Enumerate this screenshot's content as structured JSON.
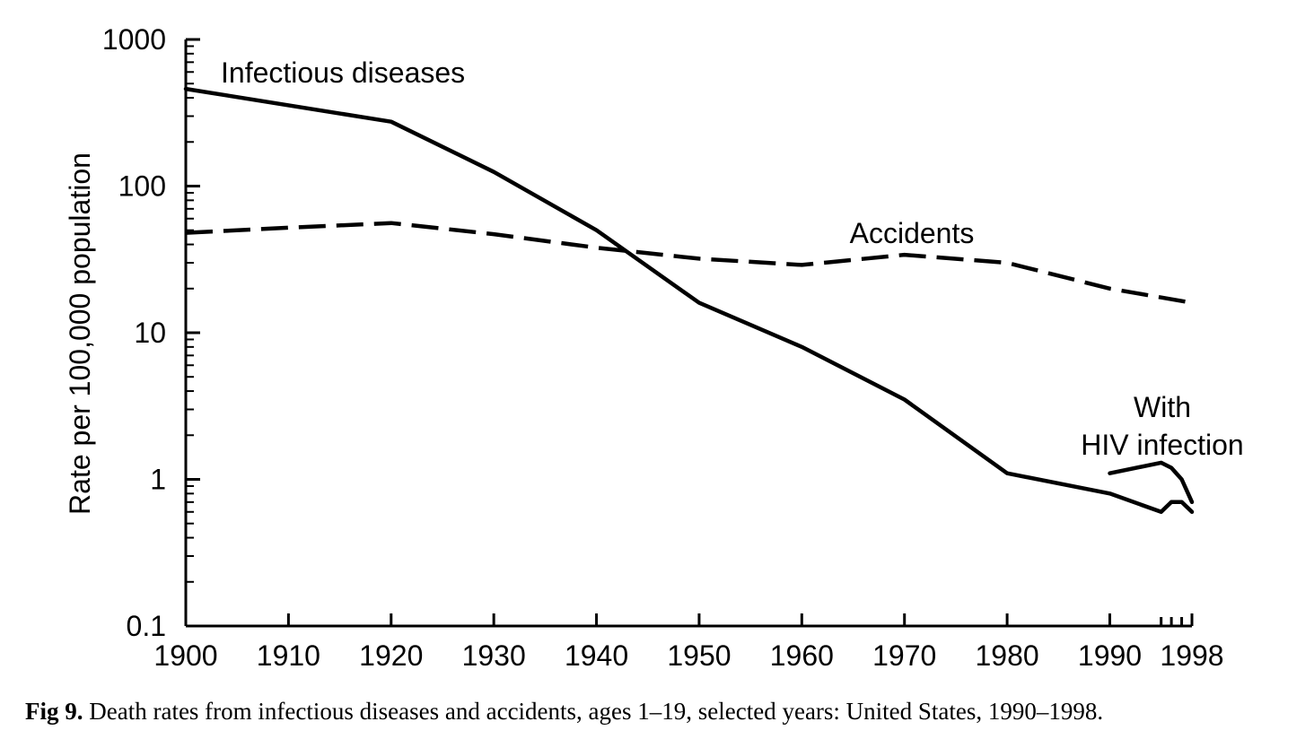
{
  "chart_data": {
    "type": "line",
    "title": "",
    "xlabel": "",
    "ylabel": "Rate per 100,000 population",
    "yscale": "log",
    "ylim": [
      0.1,
      1000
    ],
    "xlim": [
      1900,
      1998
    ],
    "y_ticks": [
      "1000",
      "100",
      "10",
      "1",
      "0.1"
    ],
    "x_ticks": [
      "1900",
      "1910",
      "1920",
      "1930",
      "1940",
      "1950",
      "1960",
      "1970",
      "1980",
      "1990",
      "1998"
    ],
    "series": [
      {
        "name": "Infectious diseases",
        "style": "solid",
        "x": [
          1900,
          1920,
          1930,
          1940,
          1950,
          1960,
          1970,
          1980,
          1990,
          1995,
          1996,
          1997,
          1998
        ],
        "y": [
          460,
          275,
          125,
          50,
          16,
          8,
          3.5,
          1.1,
          0.8,
          0.6,
          0.7,
          0.7,
          0.6
        ]
      },
      {
        "name": "With HIV infection",
        "style": "solid",
        "x": [
          1990,
          1995,
          1996,
          1997,
          1998
        ],
        "y": [
          1.1,
          1.3,
          1.2,
          1.0,
          0.7
        ]
      },
      {
        "name": "Accidents",
        "style": "dashed",
        "x": [
          1900,
          1910,
          1920,
          1930,
          1940,
          1950,
          1960,
          1970,
          1980,
          1990,
          1998
        ],
        "y": [
          48,
          52,
          56,
          47,
          38,
          32,
          29,
          34,
          30,
          20,
          16
        ]
      }
    ]
  },
  "caption": {
    "label": "Fig 9.",
    "text": "Death rates from infectious diseases and accidents, ages 1–19, selected years: United States, 1990–1998."
  }
}
